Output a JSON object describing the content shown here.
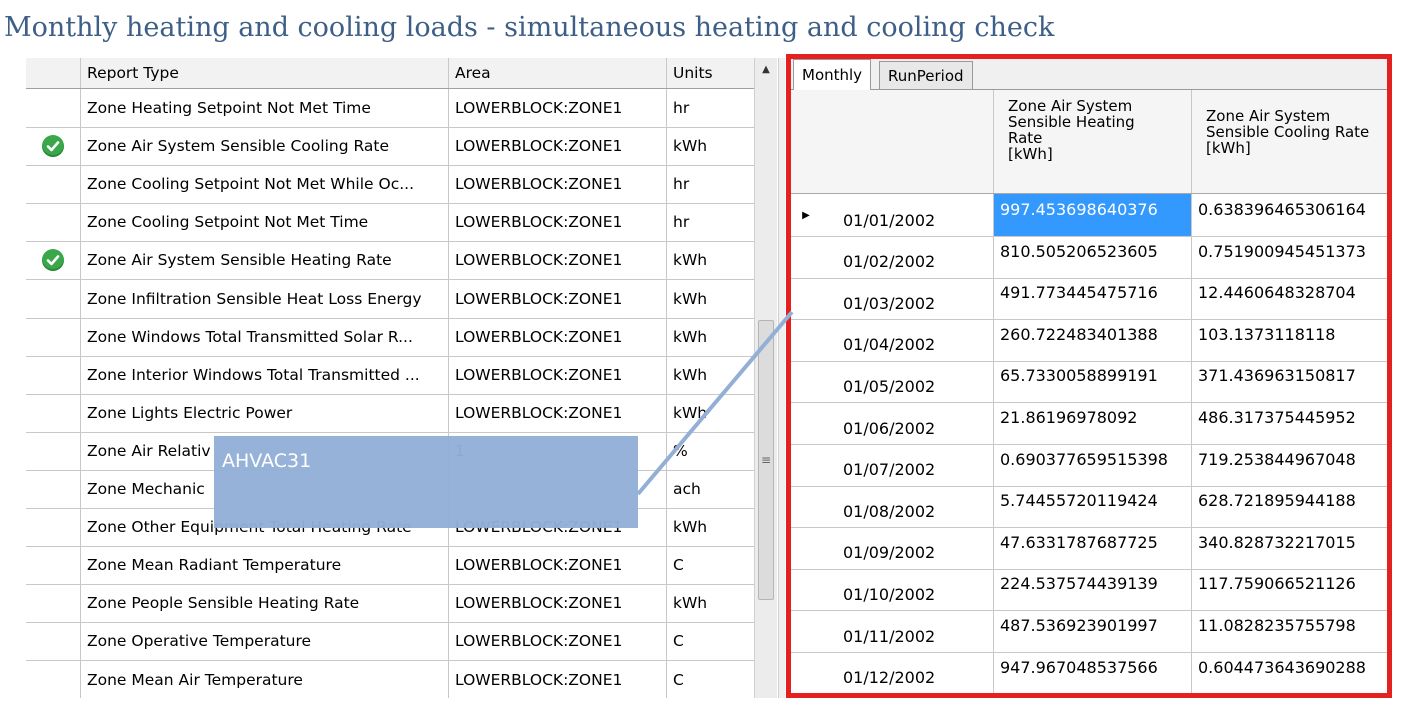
{
  "title": "Monthly heating and cooling loads - simultaneous heating and cooling check",
  "colors": {
    "title": "#3d5f87",
    "highlight_border": "#e5211f",
    "check": "#3aa84a",
    "selection": "#3399ff",
    "callout": "#93afd6"
  },
  "left_grid": {
    "headers": {
      "type": "Report Type",
      "area": "Area",
      "units": "Units"
    },
    "rows": [
      {
        "checked": false,
        "type": "Zone Heating Setpoint Not Met Time",
        "area": "LOWERBLOCK:ZONE1",
        "units": "hr"
      },
      {
        "checked": true,
        "type": "Zone Air System Sensible Cooling Rate",
        "area": "LOWERBLOCK:ZONE1",
        "units": "kWh"
      },
      {
        "checked": false,
        "type": "Zone Cooling Setpoint Not Met While Oc...",
        "area": "LOWERBLOCK:ZONE1",
        "units": "hr"
      },
      {
        "checked": false,
        "type": "Zone Cooling Setpoint Not Met Time",
        "area": "LOWERBLOCK:ZONE1",
        "units": "hr"
      },
      {
        "checked": true,
        "type": "Zone Air System Sensible Heating Rate",
        "area": "LOWERBLOCK:ZONE1",
        "units": "kWh"
      },
      {
        "checked": false,
        "type": "Zone Infiltration Sensible Heat Loss Energy",
        "area": "LOWERBLOCK:ZONE1",
        "units": "kWh"
      },
      {
        "checked": false,
        "type": "Zone Windows Total Transmitted Solar R...",
        "area": "LOWERBLOCK:ZONE1",
        "units": "kWh"
      },
      {
        "checked": false,
        "type": "Zone Interior Windows Total Transmitted ...",
        "area": "LOWERBLOCK:ZONE1",
        "units": "kWh"
      },
      {
        "checked": false,
        "type": "Zone Lights Electric Power",
        "area": "LOWERBLOCK:ZONE1",
        "units": "kWh"
      },
      {
        "checked": false,
        "type": "Zone Air Relativ",
        "area": "1",
        "units": "%"
      },
      {
        "checked": false,
        "type": "Zone Mechanic",
        "area": "",
        "units": "ach"
      },
      {
        "checked": false,
        "type": "Zone Other Equipment Total Heating Rate",
        "area": "LOWERBLOCK:ZONE1",
        "units": "kWh"
      },
      {
        "checked": false,
        "type": "Zone Mean Radiant Temperature",
        "area": "LOWERBLOCK:ZONE1",
        "units": "C"
      },
      {
        "checked": false,
        "type": "Zone People Sensible Heating Rate",
        "area": "LOWERBLOCK:ZONE1",
        "units": "kWh"
      },
      {
        "checked": false,
        "type": "Zone Operative Temperature",
        "area": "LOWERBLOCK:ZONE1",
        "units": "C"
      },
      {
        "checked": false,
        "type": "Zone Mean Air Temperature",
        "area": "LOWERBLOCK:ZONE1",
        "units": "C"
      }
    ]
  },
  "tabs": [
    "Monthly",
    "RunPeriod"
  ],
  "monthly_grid": {
    "col_heating": "Zone Air System\nSensible Heating\nRate\n[kWh]",
    "col_cooling": "Zone Air System\nSensible Cooling Rate\n[kWh]",
    "rows": [
      {
        "date": "01/01/2002",
        "heating": "997.453698640376",
        "cooling": "0.638396465306164",
        "current": true
      },
      {
        "date": "01/02/2002",
        "heating": "810.505206523605",
        "cooling": "0.751900945451373"
      },
      {
        "date": "01/03/2002",
        "heating": "491.773445475716",
        "cooling": "12.4460648328704"
      },
      {
        "date": "01/04/2002",
        "heating": "260.722483401388",
        "cooling": "103.1373118118"
      },
      {
        "date": "01/05/2002",
        "heating": "65.7330058899191",
        "cooling": "371.436963150817"
      },
      {
        "date": "01/06/2002",
        "heating": "21.86196978092",
        "cooling": "486.317375445952"
      },
      {
        "date": "01/07/2002",
        "heating": "0.690377659515398",
        "cooling": "719.253844967048"
      },
      {
        "date": "01/08/2002",
        "heating": "5.74455720119424",
        "cooling": "628.721895944188"
      },
      {
        "date": "01/09/2002",
        "heating": "47.6331787687725",
        "cooling": "340.828732217015"
      },
      {
        "date": "01/10/2002",
        "heating": "224.537574439139",
        "cooling": "117.759066521126"
      },
      {
        "date": "01/11/2002",
        "heating": "487.536923901997",
        "cooling": "11.0828235755798"
      },
      {
        "date": "01/12/2002",
        "heating": "947.967048537566",
        "cooling": "0.604473643690288"
      }
    ]
  },
  "callout": {
    "label": "AHVAC31"
  }
}
